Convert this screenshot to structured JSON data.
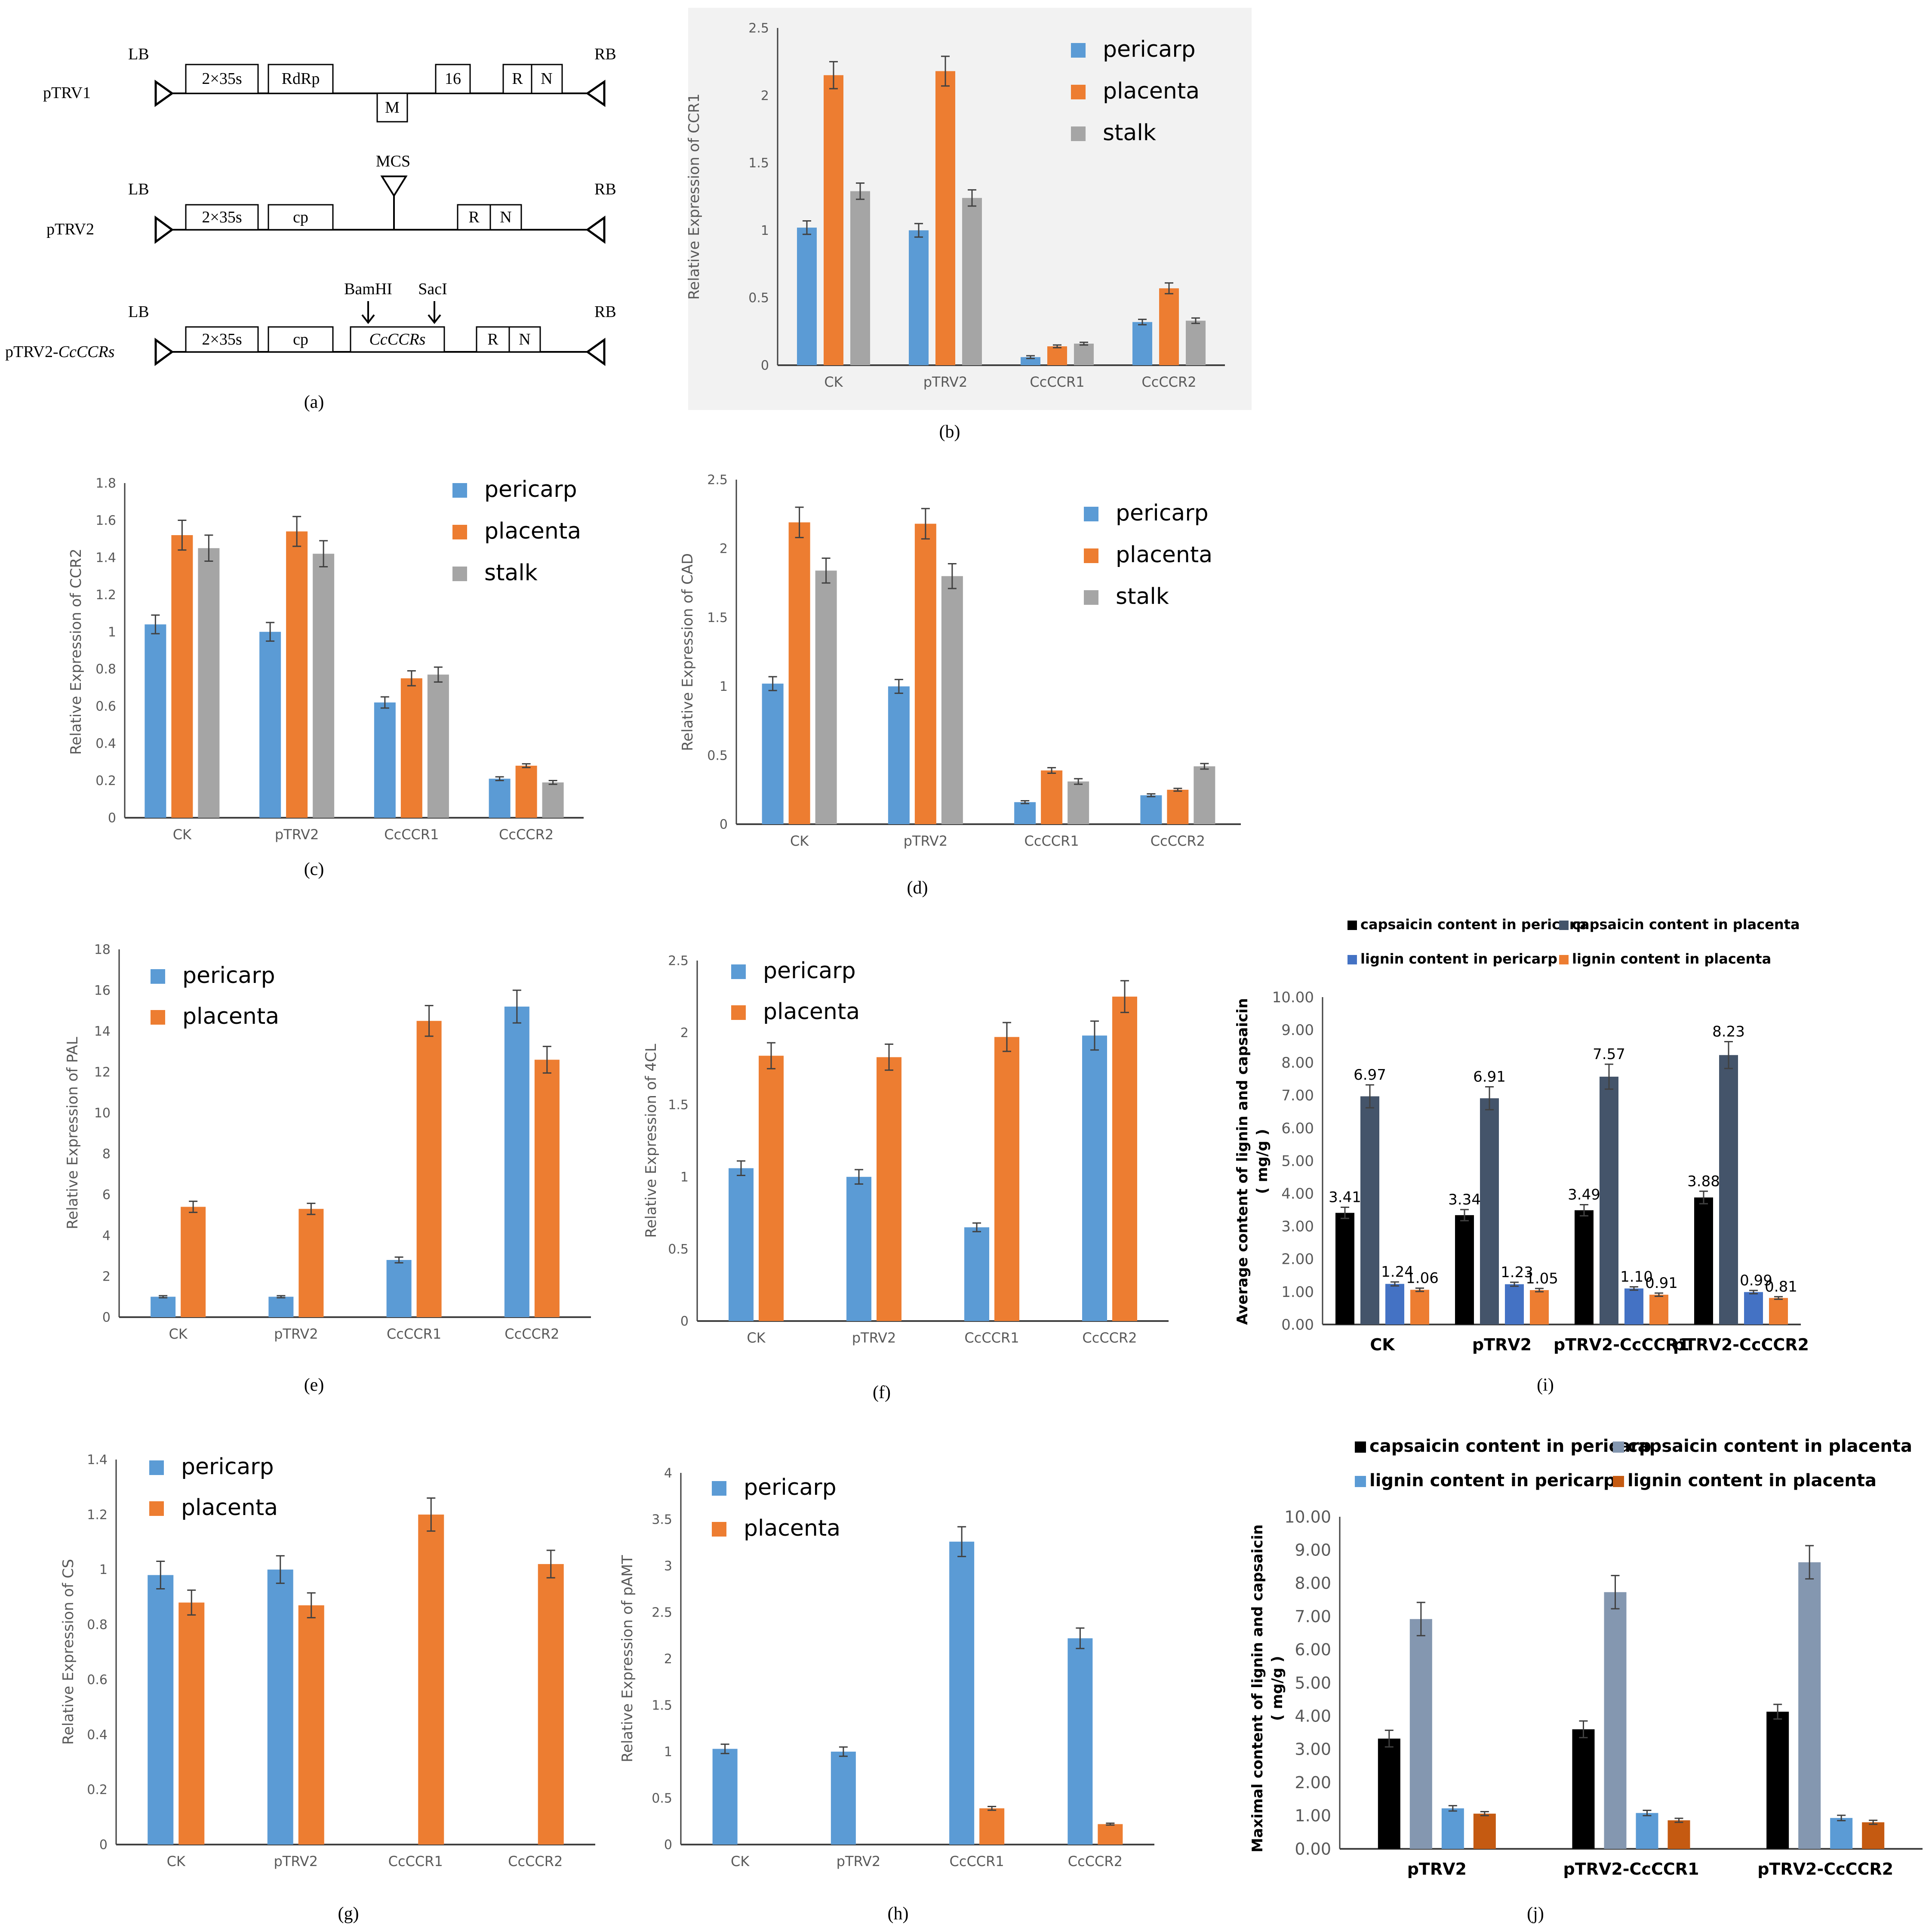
{
  "figure": {
    "captions": [
      "(a)",
      "(b)",
      "(c)",
      "(d)",
      "(e)",
      "(f)",
      "(g)",
      "(h)",
      "(i)",
      "(j)"
    ]
  },
  "colors": {
    "pericarp": "#5B9BD5",
    "placenta": "#ED7D31",
    "stalk": "#A5A5A5",
    "cap_pericarp": "#000000",
    "cap_placenta": "#44546A",
    "lig_pericarp": "#4472C4",
    "lig_placenta": "#ED7D31",
    "j_cap_placenta": "#8497B0",
    "j_lig_pericarp": "#5B9BD5",
    "j_lig_placenta": "#C55A11",
    "axis": "#404040",
    "panel_b_bg": "#F2F2F2"
  },
  "diagram": {
    "constructs": [
      {
        "name": "pTRV1",
        "italic_suffix": "",
        "left_border": "LB",
        "right_border": "RB",
        "boxes": [
          "2×35s",
          "RdRp",
          "16",
          "R",
          "N"
        ],
        "lower_box": "M"
      },
      {
        "name": "pTRV2",
        "italic_suffix": "",
        "left_border": "LB",
        "right_border": "RB",
        "boxes": [
          "2×35s",
          "cp",
          "R",
          "N"
        ],
        "site_label": "MCS"
      },
      {
        "name": "pTRV2-",
        "italic_suffix": "CcCCRs",
        "left_border": "LB",
        "right_border": "RB",
        "boxes": [
          "2×35s",
          "cp",
          "CcCCRs",
          "R",
          "N"
        ],
        "enzymes": [
          "BamHI",
          "SacI"
        ]
      }
    ]
  },
  "chart_data": [
    {
      "id": "b",
      "type": "bar",
      "title": "",
      "xlabel": "",
      "ylabel": "Relative Expression of CCR1",
      "categories": [
        "CK",
        "pTRV2",
        "CcCCR1",
        "CcCCR2"
      ],
      "ylim": [
        0,
        2.5
      ],
      "yticks": [
        "0",
        "0.5",
        "1",
        "1.5",
        "2",
        "2.5"
      ],
      "legend_position": "top-right",
      "series": [
        {
          "name": "pericarp",
          "values": [
            1.02,
            1.0,
            0.06,
            0.32
          ],
          "errors": [
            0.05,
            0.05,
            0.01,
            0.02
          ]
        },
        {
          "name": "placenta",
          "values": [
            2.15,
            2.18,
            0.14,
            0.57
          ],
          "errors": [
            0.1,
            0.11,
            0.01,
            0.04
          ]
        },
        {
          "name": "stalk",
          "values": [
            1.29,
            1.24,
            0.16,
            0.33
          ],
          "errors": [
            0.06,
            0.06,
            0.01,
            0.02
          ]
        }
      ]
    },
    {
      "id": "c",
      "type": "bar",
      "title": "",
      "xlabel": "",
      "ylabel": "Relative Expression of CCR2",
      "categories": [
        "CK",
        "pTRV2",
        "CcCCR1",
        "CcCCR2"
      ],
      "ylim": [
        0,
        1.8
      ],
      "yticks": [
        "0",
        "0.2",
        "0.4",
        "0.6",
        "0.8",
        "1",
        "1.2",
        "1.4",
        "1.6",
        "1.8"
      ],
      "legend_position": "top-right",
      "series": [
        {
          "name": "pericarp",
          "values": [
            1.04,
            1.0,
            0.62,
            0.21
          ],
          "errors": [
            0.05,
            0.05,
            0.03,
            0.01
          ]
        },
        {
          "name": "placenta",
          "values": [
            1.52,
            1.54,
            0.75,
            0.28
          ],
          "errors": [
            0.08,
            0.08,
            0.04,
            0.01
          ]
        },
        {
          "name": "stalk",
          "values": [
            1.45,
            1.42,
            0.77,
            0.19
          ],
          "errors": [
            0.07,
            0.07,
            0.04,
            0.01
          ]
        }
      ]
    },
    {
      "id": "d",
      "type": "bar",
      "title": "",
      "xlabel": "",
      "ylabel": "Relative Expression of CAD",
      "categories": [
        "CK",
        "pTRV2",
        "CcCCR1",
        "CcCCR2"
      ],
      "ylim": [
        0,
        2.5
      ],
      "yticks": [
        "0",
        "0.5",
        "1",
        "1.5",
        "2",
        "2.5"
      ],
      "legend_position": "top-right",
      "series": [
        {
          "name": "pericarp",
          "values": [
            1.02,
            1.0,
            0.16,
            0.21
          ],
          "errors": [
            0.05,
            0.05,
            0.01,
            0.01
          ]
        },
        {
          "name": "placenta",
          "values": [
            2.19,
            2.18,
            0.39,
            0.25
          ],
          "errors": [
            0.11,
            0.11,
            0.02,
            0.01
          ]
        },
        {
          "name": "stalk",
          "values": [
            1.84,
            1.8,
            0.31,
            0.42
          ],
          "errors": [
            0.09,
            0.09,
            0.02,
            0.02
          ]
        }
      ]
    },
    {
      "id": "e",
      "type": "bar",
      "title": "",
      "xlabel": "",
      "ylabel": "Relative Expression of PAL",
      "categories": [
        "CK",
        "pTRV2",
        "CcCCR1",
        "CcCCR2"
      ],
      "ylim": [
        0,
        18
      ],
      "yticks": [
        "0",
        "2",
        "4",
        "6",
        "8",
        "10",
        "12",
        "14",
        "16",
        "18"
      ],
      "legend_position": "top-left",
      "series": [
        {
          "name": "pericarp",
          "values": [
            1.0,
            1.0,
            2.8,
            15.2
          ],
          "errors": [
            0.05,
            0.05,
            0.14,
            0.8
          ]
        },
        {
          "name": "placenta",
          "values": [
            5.4,
            5.3,
            14.5,
            12.6
          ],
          "errors": [
            0.27,
            0.27,
            0.75,
            0.65
          ]
        }
      ]
    },
    {
      "id": "f",
      "type": "bar",
      "title": "",
      "xlabel": "",
      "ylabel": "Relative Expression of 4CL",
      "categories": [
        "CK",
        "pTRV2",
        "CcCCR1",
        "CcCCR2"
      ],
      "ylim": [
        0,
        2.5
      ],
      "yticks": [
        "0",
        "0.5",
        "1",
        "1.5",
        "2",
        "2.5"
      ],
      "legend_position": "top-left",
      "series": [
        {
          "name": "pericarp",
          "values": [
            1.06,
            1.0,
            0.65,
            1.98
          ],
          "errors": [
            0.05,
            0.05,
            0.03,
            0.1
          ]
        },
        {
          "name": "placenta",
          "values": [
            1.84,
            1.83,
            1.97,
            2.25
          ],
          "errors": [
            0.09,
            0.09,
            0.1,
            0.11
          ]
        }
      ]
    },
    {
      "id": "g",
      "type": "bar",
      "title": "",
      "xlabel": "",
      "ylabel": "Relative Expression of CS",
      "categories": [
        "CK",
        "pTRV2",
        "CcCCR1",
        "CcCCR2"
      ],
      "ylim": [
        0,
        1.4
      ],
      "yticks": [
        "0",
        "0.2",
        "0.4",
        "0.6",
        "0.8",
        "1",
        "1.2",
        "1.4"
      ],
      "legend_position": "top-left",
      "series": [
        {
          "name": "pericarp",
          "values": [
            0.98,
            1.0,
            0,
            0
          ],
          "errors": [
            0.05,
            0.05,
            0,
            0
          ]
        },
        {
          "name": "placenta",
          "values": [
            0.88,
            0.87,
            1.2,
            1.02
          ],
          "errors": [
            0.045,
            0.045,
            0.06,
            0.05
          ]
        }
      ]
    },
    {
      "id": "h",
      "type": "bar",
      "title": "",
      "xlabel": "",
      "ylabel": "Relative Expression of pAMT",
      "categories": [
        "CK",
        "pTRV2",
        "CcCCR1",
        "CcCCR2"
      ],
      "ylim": [
        0,
        4
      ],
      "yticks": [
        "0",
        "0.5",
        "1",
        "1.5",
        "2",
        "2.5",
        "3",
        "3.5",
        "4"
      ],
      "legend_position": "top-left",
      "series": [
        {
          "name": "pericarp",
          "values": [
            1.03,
            1.0,
            3.26,
            2.22
          ],
          "errors": [
            0.05,
            0.05,
            0.16,
            0.11
          ]
        },
        {
          "name": "placenta",
          "values": [
            0,
            0,
            0.39,
            0.22
          ],
          "errors": [
            0,
            0,
            0.02,
            0.01
          ]
        }
      ]
    },
    {
      "id": "i",
      "type": "bar",
      "title": "",
      "xlabel": "",
      "ylabel": "Average content of lignin and capsaicin",
      "ylabel2": "( mg/g )",
      "categories": [
        "CK",
        "pTRV2",
        "pTRV2-CcCCR1",
        "pTRV2-CcCCR2"
      ],
      "ylim": [
        0,
        10
      ],
      "yticks": [
        "0.00",
        "1.00",
        "2.00",
        "3.00",
        "4.00",
        "5.00",
        "6.00",
        "7.00",
        "8.00",
        "9.00",
        "10.00"
      ],
      "legend_position": "top",
      "series": [
        {
          "name": "capsaicin content in pericarp",
          "values": [
            3.41,
            3.34,
            3.49,
            3.88
          ],
          "labels": [
            "3.41",
            "3.34",
            "3.49",
            "3.88"
          ],
          "errors": [
            0.17,
            0.17,
            0.17,
            0.19
          ]
        },
        {
          "name": "capsaicin content in placenta",
          "values": [
            6.97,
            6.91,
            7.57,
            8.23
          ],
          "labels": [
            "6.97",
            "6.91",
            "7.57",
            "8.23"
          ],
          "errors": [
            0.35,
            0.35,
            0.38,
            0.41
          ]
        },
        {
          "name": "lignin content in pericarp",
          "values": [
            1.24,
            1.23,
            1.1,
            0.99
          ],
          "labels": [
            "1.24",
            "1.23",
            "1.10",
            "0.99"
          ],
          "errors": [
            0.06,
            0.06,
            0.05,
            0.05
          ]
        },
        {
          "name": "lignin content in placenta",
          "values": [
            1.06,
            1.05,
            0.91,
            0.81
          ],
          "labels": [
            "1.06",
            "1.05",
            "0.91",
            "0.81"
          ],
          "errors": [
            0.05,
            0.05,
            0.05,
            0.04
          ]
        }
      ]
    },
    {
      "id": "j",
      "type": "bar",
      "title": "",
      "xlabel": "",
      "ylabel": "Maximal content of lignin and capsaicin",
      "ylabel2": "( mg/g )",
      "categories": [
        "pTRV2",
        "pTRV2-CcCCR1",
        "pTRV2-CcCCR2"
      ],
      "ylim": [
        0,
        10
      ],
      "yticks": [
        "0.00",
        "1.00",
        "2.00",
        "3.00",
        "4.00",
        "5.00",
        "6.00",
        "7.00",
        "8.00",
        "9.00",
        "10.00"
      ],
      "legend_position": "top",
      "series": [
        {
          "name": "capsaicin content in pericarp",
          "values": [
            3.32,
            3.6,
            4.13
          ],
          "errors": [
            0.25,
            0.25,
            0.22
          ]
        },
        {
          "name": "capsaicin content in placenta",
          "values": [
            6.92,
            7.73,
            8.63
          ],
          "errors": [
            0.5,
            0.5,
            0.5
          ]
        },
        {
          "name": "lignin content in pericarp",
          "values": [
            1.22,
            1.08,
            0.93
          ],
          "errors": [
            0.08,
            0.08,
            0.08
          ]
        },
        {
          "name": "lignin content in placenta",
          "values": [
            1.06,
            0.86,
            0.8
          ],
          "errors": [
            0.06,
            0.06,
            0.06
          ]
        }
      ]
    }
  ]
}
